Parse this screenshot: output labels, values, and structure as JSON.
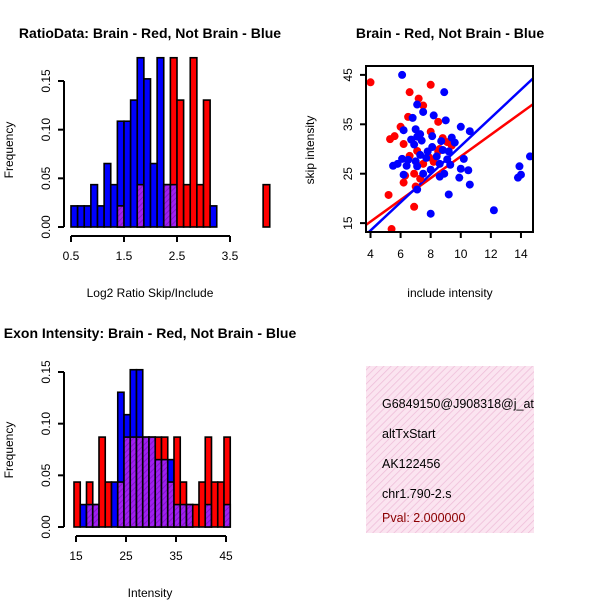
{
  "chart_data": [
    {
      "type": "bar",
      "subtype": "overlapping-histogram",
      "title": "RatioData: Brain - Red, Not Brain - Blue",
      "xlabel": "Log2 Ratio Skip/Include",
      "ylabel": "Frequency",
      "xlim": [
        0.5,
        3.5
      ],
      "ylim": [
        0,
        0.15
      ],
      "xticks": [
        "0.5",
        "1.5",
        "2.5",
        "3.5"
      ],
      "yticks": [
        "0.00",
        "0.05",
        "0.10",
        "0.15"
      ],
      "bin_start": 0.5,
      "bin_width": 0.125,
      "series": [
        {
          "name": "Brain",
          "color": "#ff0000",
          "values": [
            0,
            0,
            0,
            0,
            0,
            0,
            0,
            0.0217,
            0,
            0,
            0.0435,
            0,
            0,
            0,
            0.0435,
            0.1739,
            0.1304,
            0.0435,
            0.1739,
            0.0435,
            0.1304,
            0,
            0,
            0,
            0,
            0,
            0,
            0,
            0,
            0.0435,
            0
          ]
        },
        {
          "name": "Not Brain",
          "color": "#0000ff",
          "values": [
            0.0217,
            0.0217,
            0.0217,
            0.0435,
            0.0217,
            0.0652,
            0.0435,
            0.1087,
            0.1087,
            0.1304,
            0.1739,
            0.1522,
            0.0652,
            0.1739,
            0.0435,
            0.0435,
            0,
            0,
            0,
            0,
            0,
            0.0217,
            0,
            0,
            0,
            0,
            0,
            0,
            0,
            0,
            0
          ]
        }
      ],
      "overlap_color": "#a020f0"
    },
    {
      "type": "scatter",
      "title": "Brain - Red, Not Brain - Blue",
      "xlabel": "include intensity",
      "ylabel": "skip intensity",
      "xlim": [
        3.7,
        14.8
      ],
      "ylim": [
        13.2,
        46.8
      ],
      "xticks": [
        "4",
        "6",
        "8",
        "10",
        "12",
        "14"
      ],
      "yticks": [
        "15",
        "25",
        "35",
        "45"
      ],
      "series": [
        {
          "name": "Brain",
          "color": "#ff0000",
          "fit_line": {
            "slope": 2.2,
            "intercept": 6.5
          },
          "points": [
            [
              4.0,
              43.5
            ],
            [
              6.5,
              36.5
            ],
            [
              8.0,
              43.0
            ],
            [
              6.6,
              41.5
            ],
            [
              7.2,
              40.2
            ],
            [
              7.5,
              38.8
            ],
            [
              8.5,
              35.5
            ],
            [
              8.0,
              33.5
            ],
            [
              6.0,
              34.5
            ],
            [
              5.6,
              32.6
            ],
            [
              5.3,
              32.0
            ],
            [
              6.2,
              31.0
            ],
            [
              9.1,
              31.4
            ],
            [
              9.4,
              30.7
            ],
            [
              8.5,
              29.5
            ],
            [
              7.1,
              29.6
            ],
            [
              6.6,
              28.6
            ],
            [
              7.9,
              28.3
            ],
            [
              8.2,
              27.4
            ],
            [
              7.5,
              27.0
            ],
            [
              6.9,
              25.0
            ],
            [
              6.3,
              24.6
            ],
            [
              7.3,
              24.0
            ],
            [
              6.2,
              23.2
            ],
            [
              7.0,
              22.4
            ],
            [
              5.2,
              20.7
            ],
            [
              6.9,
              18.3
            ],
            [
              5.4,
              13.8
            ],
            [
              8.8,
              32.2
            ],
            [
              8.6,
              30.0
            ]
          ]
        },
        {
          "name": "Not Brain",
          "color": "#0000ff",
          "fit_line": {
            "slope": 2.85,
            "intercept": 2.1
          },
          "points": [
            [
              6.1,
              45.0
            ],
            [
              8.9,
              41.5
            ],
            [
              7.1,
              39.0
            ],
            [
              7.5,
              37.5
            ],
            [
              8.2,
              36.8
            ],
            [
              6.8,
              36.3
            ],
            [
              9.0,
              35.8
            ],
            [
              7.0,
              34.0
            ],
            [
              6.2,
              33.8
            ],
            [
              10.0,
              34.5
            ],
            [
              10.6,
              33.6
            ],
            [
              7.3,
              33.0
            ],
            [
              7.1,
              32.5
            ],
            [
              8.1,
              32.6
            ],
            [
              9.4,
              32.3
            ],
            [
              6.7,
              31.9
            ],
            [
              7.4,
              31.7
            ],
            [
              8.7,
              31.6
            ],
            [
              9.6,
              31.3
            ],
            [
              6.9,
              30.9
            ],
            [
              8.1,
              30.4
            ],
            [
              8.8,
              29.8
            ],
            [
              7.8,
              29.5
            ],
            [
              9.2,
              29.5
            ],
            [
              7.3,
              28.8
            ],
            [
              7.7,
              28.2
            ],
            [
              8.4,
              28.5
            ],
            [
              9.1,
              27.9
            ],
            [
              10.2,
              28.0
            ],
            [
              6.1,
              28.0
            ],
            [
              6.5,
              27.8
            ],
            [
              7.0,
              27.5
            ],
            [
              5.8,
              27.0
            ],
            [
              5.5,
              26.6
            ],
            [
              6.4,
              26.6
            ],
            [
              7.1,
              26.5
            ],
            [
              8.6,
              27.0
            ],
            [
              9.3,
              26.8
            ],
            [
              10.0,
              26.0
            ],
            [
              8.0,
              25.8
            ],
            [
              10.5,
              25.7
            ],
            [
              8.9,
              25.0
            ],
            [
              7.5,
              25.0
            ],
            [
              6.2,
              24.8
            ],
            [
              8.6,
              24.4
            ],
            [
              9.9,
              24.2
            ],
            [
              13.9,
              26.5
            ],
            [
              14.0,
              24.8
            ],
            [
              13.8,
              24.2
            ],
            [
              14.6,
              28.5
            ],
            [
              10.6,
              22.8
            ],
            [
              9.2,
              20.8
            ],
            [
              7.1,
              21.8
            ],
            [
              8.0,
              16.9
            ],
            [
              12.2,
              17.6
            ]
          ]
        }
      ]
    },
    {
      "type": "bar",
      "subtype": "overlapping-histogram",
      "title": "Exon Intensity: Brain - Red, Not Brain - Blue",
      "xlabel": "Intensity",
      "ylabel": "Frequency",
      "xlim": [
        15,
        45
      ],
      "ylim": [
        0,
        0.15
      ],
      "xticks": [
        "15",
        "25",
        "35",
        "45"
      ],
      "yticks": [
        "0.00",
        "0.05",
        "0.10",
        "0.15"
      ],
      "bin_start": 14.6,
      "bin_width": 1.25,
      "series": [
        {
          "name": "Brain",
          "color": "#ff0000",
          "values": [
            0.0435,
            0,
            0.0435,
            0.0217,
            0.087,
            0.0435,
            0,
            0.0435,
            0.087,
            0.087,
            0.087,
            0.087,
            0.087,
            0.087,
            0.087,
            0.0435,
            0.087,
            0.0435,
            0.0217,
            0.0217,
            0.0435,
            0.087,
            0.0435,
            0.0435,
            0.087
          ]
        },
        {
          "name": "Not Brain",
          "color": "#0000ff",
          "values": [
            0,
            0.0217,
            0.0217,
            0.0217,
            0,
            0,
            0.0435,
            0.1304,
            0.1087,
            0.1522,
            0.1522,
            0.087,
            0.087,
            0.0652,
            0.0652,
            0.0652,
            0.0217,
            0.0217,
            0.0217,
            0,
            0,
            0.0217,
            0,
            0,
            0.0217
          ]
        }
      ],
      "overlap_color": "#a020f0"
    }
  ],
  "info_panel": {
    "background": "#f8d8ea",
    "lines": [
      "G6849150@J908318@j_at",
      "altTxStart",
      "AK122456",
      "chr1.790-2.s"
    ],
    "pval": "Pval: 2.000000",
    "pval_color": "#8b0000"
  }
}
